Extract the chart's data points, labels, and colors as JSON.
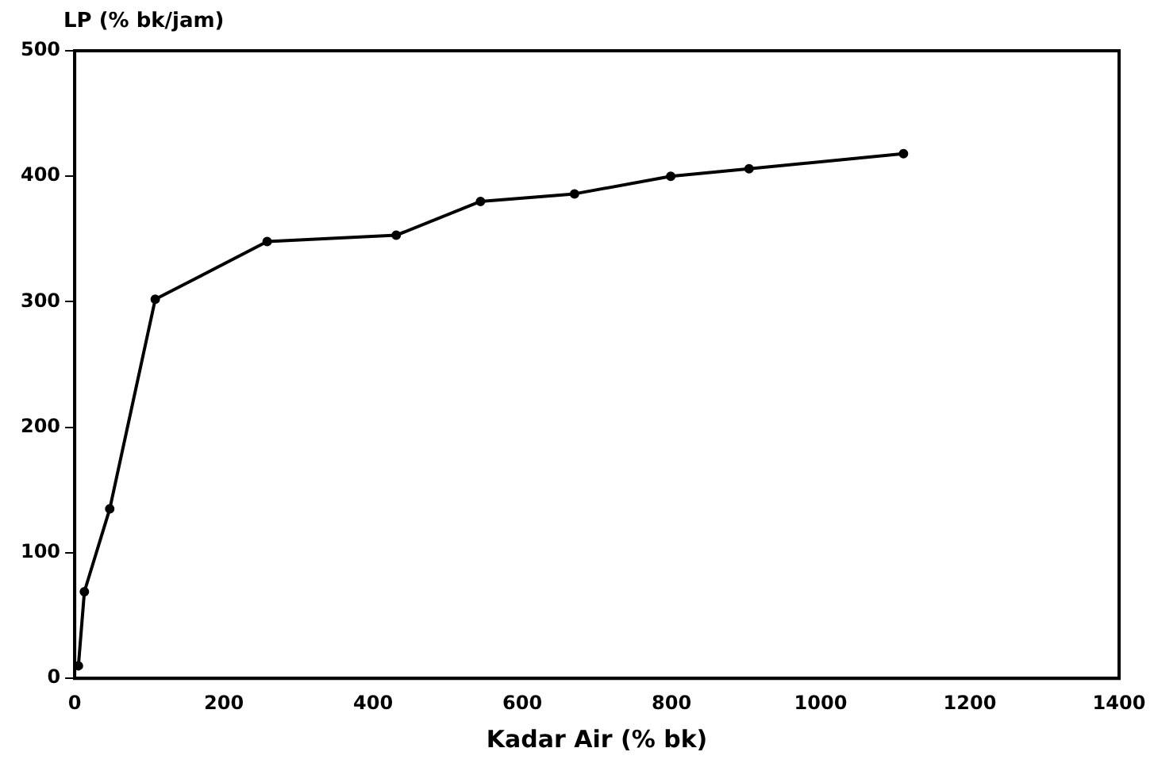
{
  "chart_data": {
    "type": "line",
    "ylabel": "LP (% bk/jam)",
    "xlabel": "Kadar Air (% bk)",
    "x": [
      5,
      13,
      47,
      108,
      258,
      431,
      544,
      670,
      799,
      904,
      1111
    ],
    "series": [
      {
        "color": "#000000",
        "values": [
          10,
          69,
          135,
          302,
          348,
          353,
          380,
          386,
          400,
          406,
          418
        ]
      }
    ],
    "xlim": [
      0,
      1400
    ],
    "xticks": [
      0,
      200,
      400,
      600,
      800,
      1000,
      1200,
      1400
    ],
    "ylim": [
      0,
      500
    ],
    "yticks": [
      0,
      100,
      200,
      300,
      400,
      500
    ],
    "marker": "circle",
    "line_style": "solid",
    "legend": false,
    "grid": false
  }
}
